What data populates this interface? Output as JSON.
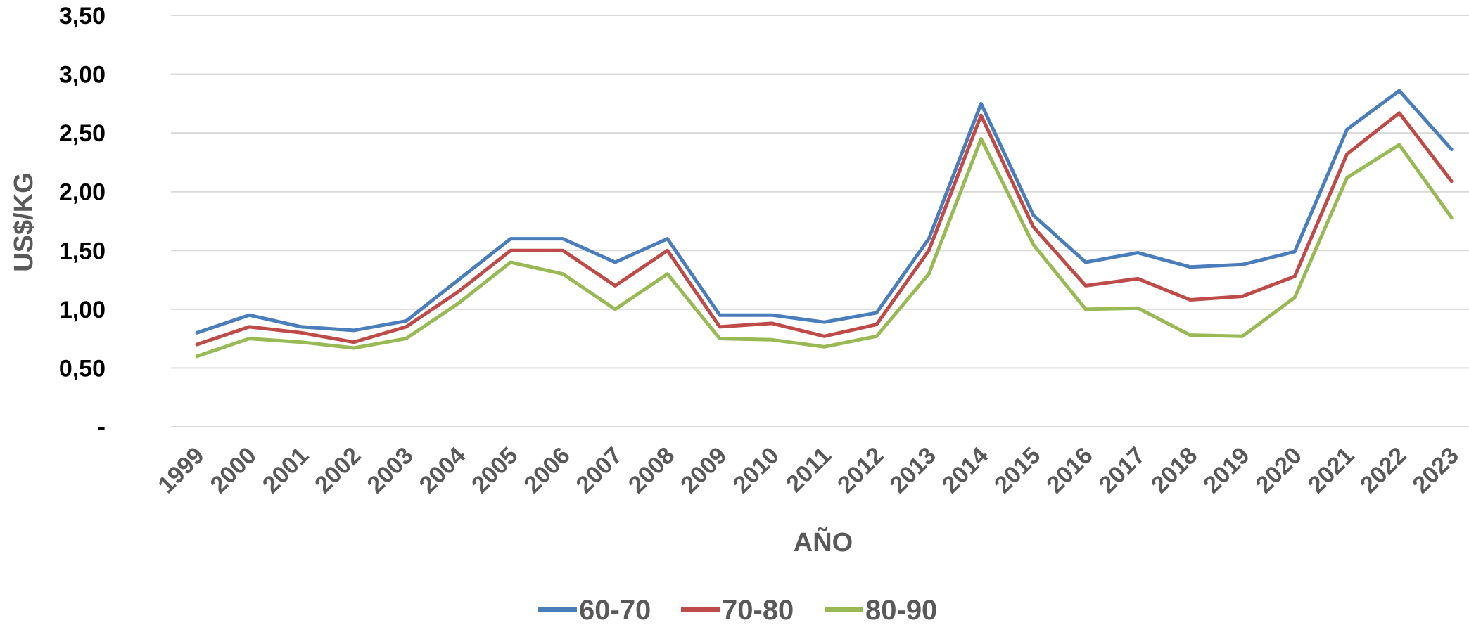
{
  "chart_data": {
    "type": "line",
    "xlabel": "AÑO",
    "ylabel": "US$/KG",
    "ylim": [
      0,
      3.5
    ],
    "yticks": [
      {
        "value": 0,
        "label": "-"
      },
      {
        "value": 0.5,
        "label": "0,50"
      },
      {
        "value": 1.0,
        "label": "1,00"
      },
      {
        "value": 1.5,
        "label": "1,50"
      },
      {
        "value": 2.0,
        "label": "2,00"
      },
      {
        "value": 2.5,
        "label": "2,50"
      },
      {
        "value": 3.0,
        "label": "3,00"
      },
      {
        "value": 3.5,
        "label": "3,50"
      }
    ],
    "categories": [
      "1999",
      "2000",
      "2001",
      "2002",
      "2003",
      "2004",
      "2005",
      "2006",
      "2007",
      "2008",
      "2009",
      "2010",
      "2011",
      "2012",
      "2013",
      "2014",
      "2015",
      "2016",
      "2017",
      "2018",
      "2019",
      "2020",
      "2021",
      "2022",
      "2023"
    ],
    "grid": true,
    "legend_position": "bottom",
    "series": [
      {
        "name": "60-70",
        "color": "#4a7ebb",
        "values": [
          0.8,
          0.95,
          0.85,
          0.82,
          0.9,
          1.25,
          1.6,
          1.6,
          1.4,
          1.6,
          0.95,
          0.95,
          0.89,
          0.97,
          1.6,
          2.75,
          1.8,
          1.4,
          1.48,
          1.36,
          1.38,
          1.49,
          2.53,
          2.86,
          2.36
        ]
      },
      {
        "name": "70-80",
        "color": "#be4b48",
        "values": [
          0.7,
          0.85,
          0.8,
          0.72,
          0.85,
          1.15,
          1.5,
          1.5,
          1.2,
          1.5,
          0.85,
          0.88,
          0.77,
          0.87,
          1.5,
          2.65,
          1.7,
          1.2,
          1.26,
          1.08,
          1.11,
          1.28,
          2.32,
          2.67,
          2.09
        ]
      },
      {
        "name": "80-90",
        "color": "#98b954",
        "values": [
          0.6,
          0.75,
          0.72,
          0.67,
          0.75,
          1.05,
          1.4,
          1.3,
          1.0,
          1.3,
          0.75,
          0.74,
          0.68,
          0.77,
          1.3,
          2.45,
          1.55,
          1.0,
          1.01,
          0.78,
          0.77,
          1.1,
          2.12,
          2.4,
          1.78
        ]
      }
    ]
  }
}
